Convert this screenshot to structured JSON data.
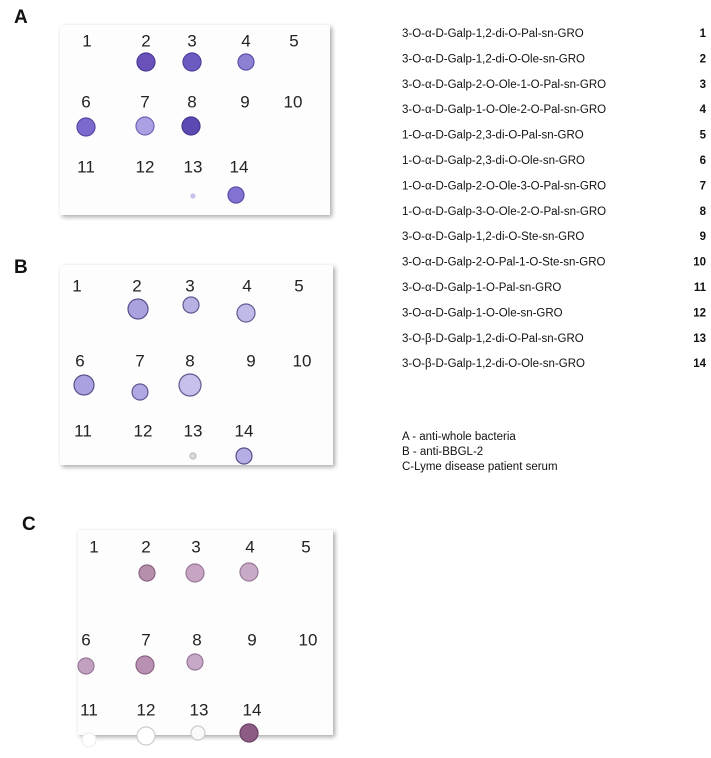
{
  "panels": [
    {
      "label": "A",
      "spots": [
        "1",
        "2",
        "3",
        "4",
        "5",
        "6",
        "7",
        "8",
        "9",
        "10",
        "11",
        "12",
        "13",
        "14"
      ]
    },
    {
      "label": "B",
      "spots": [
        "1",
        "2",
        "3",
        "4",
        "5",
        "6",
        "7",
        "8",
        "9",
        "10",
        "11",
        "12",
        "13",
        "14"
      ]
    },
    {
      "label": "C",
      "spots": [
        "1",
        "2",
        "3",
        "4",
        "5",
        "6",
        "7",
        "8",
        "9",
        "10",
        "11",
        "12",
        "13",
        "14"
      ]
    }
  ],
  "compounds": [
    {
      "name": "3-O-α-D-Galp-1,2-di-O-Pal-sn-GRO",
      "number": "1"
    },
    {
      "name": "3-O-α-D-Galp-1,2-di-O-Ole-sn-GRO",
      "number": "2"
    },
    {
      "name": "3-O-α-D-Galp-2-O-Ole-1-O-Pal-sn-GRO",
      "number": "3"
    },
    {
      "name": "3-O-α-D-Galp-1-O-Ole-2-O-Pal-sn-GRO",
      "number": "4"
    },
    {
      "name": "1-O-α-D-Galp-2,3-di-O-Pal-sn-GRO",
      "number": "5"
    },
    {
      "name": "1-O-α-D-Galp-2,3-di-O-Ole-sn-GRO",
      "number": "6"
    },
    {
      "name": "1-O-α-D-Galp-2-O-Ole-3-O-Pal-sn-GRO",
      "number": "7"
    },
    {
      "name": "1-O-α-D-Galp-3-O-Ole-2-O-Pal-sn-GRO",
      "number": "8"
    },
    {
      "name": "3-O-α-D-Galp-1,2-di-O-Ste-sn-GRO",
      "number": "9"
    },
    {
      "name": "3-O-α-D-Galp-2-O-Pal-1-O-Ste-sn-GRO",
      "number": "10"
    },
    {
      "name": "3-O-α-D-Galp-1-O-Pal-sn-GRO",
      "number": "11"
    },
    {
      "name": "3-O-α-D-Galp-1-O-Ole-sn-GRO",
      "number": "12"
    },
    {
      "name": "3-O-β-D-Galp-1,2-di-O-Pal-sn-GRO",
      "number": "13"
    },
    {
      "name": "3-O-β-D-Galp-1,2-di-O-Ole-sn-GRO",
      "number": "14"
    }
  ],
  "key": [
    "A - anti-whole bacteria",
    "B - anti-BBGL-2",
    "C-Lyme disease patient serum"
  ]
}
